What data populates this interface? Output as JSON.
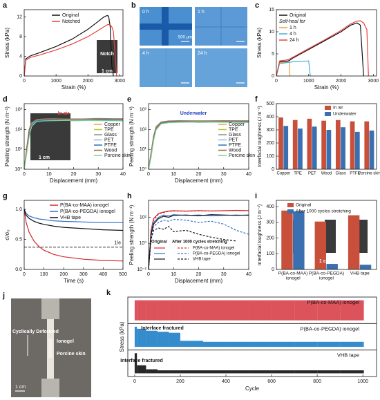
{
  "chart_data": [
    {
      "panel": "a",
      "type": "line",
      "xlabel": "Strain (%)",
      "ylabel": "Stress (kPa)",
      "xlim": [
        0,
        3100
      ],
      "ylim": [
        0,
        13.5
      ],
      "xticks": [
        0,
        1000,
        2000,
        3000
      ],
      "yticks": [
        0,
        4,
        8,
        12
      ],
      "x": [
        0,
        50,
        200,
        500,
        1000,
        1500,
        2000,
        2300,
        2500,
        2600,
        2650,
        2700,
        2750,
        2800,
        2900,
        3000
      ],
      "series": [
        {
          "name": "Original",
          "color": "#111111",
          "values": [
            0,
            3.5,
            4.1,
            4.8,
            6.0,
            7.5,
            9.5,
            11.0,
            12.0,
            12.3,
            12.2,
            10,
            2,
            0,
            null,
            null
          ]
        },
        {
          "name": "Notched",
          "color": "#e8413c",
          "values": [
            0,
            3.2,
            3.8,
            4.3,
            5.3,
            6.5,
            8.0,
            9.2,
            10.0,
            10.4,
            10.5,
            10.4,
            10.0,
            9,
            0,
            null
          ]
        }
      ],
      "annotations": [
        {
          "text": "Notch",
          "color": "#ffffff"
        },
        {
          "text": "1 cm",
          "color": "#ffffff"
        }
      ]
    },
    {
      "panel": "c",
      "type": "line",
      "xlabel": "Strain (%)",
      "ylabel": "Stress (kPa)",
      "xlim": [
        0,
        3100
      ],
      "ylim": [
        0,
        15
      ],
      "xticks": [
        0,
        1000,
        2000,
        3000
      ],
      "yticks": [
        0,
        5,
        10,
        15
      ],
      "legend_title": "Self-heal for",
      "x": [
        0,
        100,
        300,
        400,
        420,
        500,
        1000,
        1050,
        1500,
        2000,
        2300,
        2500,
        2600,
        2700,
        2800,
        2850,
        2900
      ],
      "series": [
        {
          "name": "Original",
          "color": "#111111",
          "values": [
            0,
            3.2,
            3.3,
            3.5,
            3.6,
            4.0,
            6.0,
            6.2,
            8.0,
            10.0,
            11.5,
            12.0,
            11.5,
            0,
            null,
            null,
            null
          ]
        },
        {
          "name": "1 h",
          "color": "#f0a030",
          "values": [
            0,
            3.0,
            3.1,
            3.2,
            0,
            null,
            null,
            null,
            null,
            null,
            null,
            null,
            null,
            null,
            null,
            null,
            null
          ]
        },
        {
          "name": "4 h",
          "color": "#3fb0e0",
          "values": [
            0,
            2.8,
            3.0,
            3.1,
            3.1,
            3.2,
            3.4,
            0,
            null,
            null,
            null,
            null,
            null,
            null,
            null,
            null,
            null
          ]
        },
        {
          "name": "24 h",
          "color": "#e8413c",
          "values": [
            0,
            3.4,
            3.6,
            3.8,
            3.9,
            4.2,
            6.2,
            6.4,
            8.2,
            10.3,
            11.8,
            12.4,
            12.5,
            12.0,
            10.5,
            0,
            null
          ]
        }
      ]
    },
    {
      "panel": "d",
      "type": "line",
      "yscale": "log",
      "xlabel": "Displacement (mm)",
      "ylabel": "Peeling strength (N m⁻¹)",
      "xlim": [
        0,
        40
      ],
      "ylim": [
        1,
        2000
      ],
      "xticks": [
        0,
        10,
        20,
        30,
        40
      ],
      "yticks": [
        {
          "value": 1,
          "label": "10⁰"
        },
        {
          "value": 10,
          "label": "10¹"
        },
        {
          "value": 100,
          "label": "10²"
        },
        {
          "value": 1000,
          "label": "10³"
        }
      ],
      "x": [
        0,
        1,
        2,
        3,
        5,
        8,
        12,
        20,
        30,
        40
      ],
      "series": [
        {
          "name": "Copper",
          "color": "#f2a33a",
          "values": [
            1,
            10,
            80,
            200,
            300,
            320,
            330,
            310,
            340,
            330
          ]
        },
        {
          "name": "TPE",
          "color": "#b5c93a",
          "values": [
            1,
            8,
            60,
            180,
            280,
            300,
            310,
            320,
            300,
            310
          ]
        },
        {
          "name": "Glass",
          "color": "#8c8c8c",
          "values": [
            1,
            12,
            100,
            220,
            320,
            340,
            350,
            330,
            360,
            340
          ]
        },
        {
          "name": "PET",
          "color": "#7cc3e8",
          "values": [
            1,
            9,
            70,
            190,
            290,
            310,
            290,
            300,
            320,
            300
          ]
        },
        {
          "name": "PTFE",
          "color": "#2f6fb5",
          "values": [
            1,
            7,
            50,
            160,
            270,
            290,
            300,
            280,
            290,
            300
          ]
        },
        {
          "name": "Wood",
          "color": "#9a6a3a",
          "values": [
            1,
            11,
            90,
            210,
            310,
            330,
            320,
            340,
            330,
            350
          ]
        },
        {
          "name": "Porcine skin",
          "color": "#7fcf9a",
          "values": [
            1,
            6,
            40,
            140,
            250,
            270,
            280,
            290,
            280,
            270
          ]
        }
      ],
      "annotations": [
        {
          "text": "In air",
          "color": "#e8413c"
        },
        {
          "text": "1 cm",
          "color": "#ffffff"
        }
      ]
    },
    {
      "panel": "e",
      "type": "line",
      "yscale": "log",
      "xlabel": "Displacement (mm)",
      "ylabel": "Peeling strength (N m⁻¹)",
      "xlim": [
        0,
        40
      ],
      "ylim": [
        1,
        2000
      ],
      "xticks": [
        0,
        10,
        20,
        30,
        40
      ],
      "yticks": [
        {
          "value": 1,
          "label": "10⁰"
        },
        {
          "value": 10,
          "label": "10¹"
        },
        {
          "value": 100,
          "label": "10²"
        },
        {
          "value": 1000,
          "label": "10³"
        }
      ],
      "x": [
        0,
        1,
        2,
        3,
        5,
        8,
        12,
        20,
        30,
        40
      ],
      "series": [
        {
          "name": "Copper",
          "color": "#f2a33a",
          "values": [
            1,
            6,
            40,
            120,
            220,
            250,
            260,
            250,
            270,
            260
          ]
        },
        {
          "name": "TPE",
          "color": "#b5c93a",
          "values": [
            1,
            5,
            35,
            110,
            210,
            240,
            250,
            240,
            250,
            245
          ]
        },
        {
          "name": "Glass",
          "color": "#8c8c8c",
          "values": [
            1,
            7,
            50,
            140,
            240,
            270,
            280,
            270,
            280,
            275
          ]
        },
        {
          "name": "PET",
          "color": "#7cc3e8",
          "values": [
            1,
            6,
            45,
            130,
            230,
            255,
            250,
            260,
            255,
            250
          ]
        },
        {
          "name": "PTFE",
          "color": "#2f6fb5",
          "values": [
            1,
            4,
            30,
            100,
            200,
            230,
            240,
            230,
            235,
            240
          ]
        },
        {
          "name": "Wood",
          "color": "#9a6a3a",
          "values": [
            1,
            6,
            42,
            125,
            225,
            260,
            265,
            270,
            265,
            270
          ]
        },
        {
          "name": "Porcine skin",
          "color": "#7fcf9a",
          "values": [
            1,
            4,
            28,
            95,
            190,
            220,
            230,
            235,
            230,
            225
          ]
        }
      ],
      "annotations": [
        {
          "text": "Underwater",
          "color": "#1f3fbf"
        }
      ]
    },
    {
      "panel": "f",
      "type": "bar",
      "ylabel": "Interfacial toughness (J m⁻²)",
      "ylim": [
        0,
        500
      ],
      "yticks": [
        0,
        100,
        200,
        300,
        400,
        500
      ],
      "categories": [
        [
          "Copper"
        ],
        [
          "TPE"
        ],
        [
          "PET"
        ],
        [
          "Wood"
        ],
        [
          "Glass"
        ],
        [
          "PTFE"
        ],
        [
          "Porcine skin"
        ]
      ],
      "series": [
        {
          "name": "In air",
          "color": "#c8503a",
          "values": [
            395,
            375,
            385,
            370,
            375,
            365,
            365
          ]
        },
        {
          "name": "Underwater",
          "color": "#3a6fb0",
          "values": [
            330,
            310,
            325,
            300,
            320,
            285,
            295
          ]
        }
      ]
    },
    {
      "panel": "g",
      "type": "line",
      "xlabel": "Time (s)",
      "ylabel": "σ/σ₀",
      "xlim": [
        0,
        500
      ],
      "ylim": [
        0,
        1.15
      ],
      "xticks": [
        0,
        100,
        200,
        300,
        400,
        500
      ],
      "yticks": [
        {
          "value": 0,
          "label": "0.0"
        },
        {
          "value": 0.5,
          "label": "0.5"
        },
        {
          "value": 1,
          "label": "1.0"
        }
      ],
      "reference_line": {
        "value": 0.37,
        "label": "1/e"
      },
      "x": [
        0,
        10,
        25,
        50,
        75,
        100,
        150,
        200,
        300,
        400,
        500
      ],
      "series": [
        {
          "name": "P(BA-co-MAA) ionogel",
          "color": "#d42a2a",
          "values": [
            1.0,
            0.78,
            0.62,
            0.47,
            0.38,
            0.32,
            0.25,
            0.21,
            0.17,
            0.15,
            0.14
          ]
        },
        {
          "name": "P(BA-co-PEGDA) ionogel",
          "color": "#2f6fd0",
          "values": [
            1.0,
            0.93,
            0.89,
            0.86,
            0.84,
            0.83,
            0.81,
            0.8,
            0.79,
            0.78,
            0.78
          ]
        },
        {
          "name": "VHB tape",
          "color": "#111111",
          "values": [
            1.0,
            0.9,
            0.85,
            0.8,
            0.77,
            0.75,
            0.72,
            0.7,
            0.68,
            0.66,
            0.65
          ]
        }
      ]
    },
    {
      "panel": "h",
      "type": "line",
      "yscale": "log",
      "xlabel": "Displacement (mm)",
      "ylabel": "Peeling strength (N m⁻¹)",
      "xlim": [
        0,
        40
      ],
      "ylim": [
        0.01,
        2000
      ],
      "xticks": [
        0,
        10,
        20,
        30,
        40
      ],
      "yticks": [
        {
          "value": 0.01,
          "label": "10⁻²"
        },
        {
          "value": 1,
          "label": "10⁰"
        },
        {
          "value": 100,
          "label": "10²"
        }
      ],
      "legend_title": [
        "Original",
        "After 1000 cycles stretching"
      ],
      "x": [
        0,
        1,
        2,
        4,
        6,
        8,
        10,
        15,
        20,
        25,
        30,
        35,
        40
      ],
      "series": [
        {
          "name": "P(BA-co-MAA) ionogel",
          "color": "#d42a2a",
          "values": [
            0.01,
            10,
            80,
            200,
            250,
            300,
            320,
            300,
            330,
            310,
            320,
            340,
            330
          ],
          "values_after": [
            0.01,
            8,
            60,
            180,
            230,
            280,
            300,
            290,
            310,
            300,
            320,
            330,
            320
          ]
        },
        {
          "name": "P(BA-co-PEGDA) ionogel",
          "color": "#2f6fd0",
          "values": [
            0.01,
            5,
            40,
            100,
            150,
            130,
            160,
            140,
            150,
            130,
            140,
            150,
            140
          ],
          "values_after": [
            0.01,
            3,
            20,
            40,
            60,
            50,
            70,
            60,
            40,
            50,
            30,
            10,
            5
          ]
        },
        {
          "name": "VHB tape",
          "color": "#111111",
          "values": [
            0.01,
            5,
            30,
            80,
            120,
            100,
            140,
            150,
            130,
            160,
            150,
            140,
            150
          ],
          "values_after": [
            0.01,
            2,
            10,
            15,
            12,
            20,
            8,
            10,
            5,
            3,
            2,
            1.5,
            null
          ]
        }
      ]
    },
    {
      "panel": "i",
      "type": "bar",
      "ylabel": "Interfacial toughness (J m⁻²)",
      "ylim": [
        0,
        440
      ],
      "yticks": [
        0,
        100,
        200,
        300,
        400
      ],
      "categories": [
        [
          "P(BA-co-MAA)",
          "ionogel"
        ],
        [
          "P(BA-co-PEGDA)",
          "ionogel"
        ],
        [
          "VHB tape"
        ]
      ],
      "series": [
        {
          "name": "Original",
          "color": "#c8503a",
          "values": [
            375,
            305,
            345
          ]
        },
        {
          "name": "After 1000 cycles stretching",
          "color": "#3a6fb0",
          "values": [
            370,
            35,
            30
          ]
        }
      ],
      "annotations": [
        {
          "text": "1 cm",
          "color": "#ffffff"
        }
      ]
    },
    {
      "panel": "k",
      "type": "band",
      "xlabel": "Cycle",
      "ylabel": "Stress (kPa)",
      "xlim": [
        -30,
        1060
      ],
      "xticks": [
        0,
        200,
        400,
        600,
        800,
        1000
      ],
      "x": [
        0,
        10,
        50,
        100,
        150,
        200,
        300,
        400,
        500,
        600,
        700,
        800,
        900,
        1000
      ],
      "series": [
        {
          "name": "P(BA-co-MAA) ionogel",
          "color": "#d8404a",
          "values": [
            1,
            1,
            1,
            1,
            1,
            1,
            1,
            1,
            1,
            1,
            1,
            1,
            1,
            1
          ]
        },
        {
          "name": "P(BA-co-PEGDA) ionogel",
          "color": "#1f7fc8",
          "values": [
            1,
            0.9,
            0.8,
            0.75,
            0.7,
            0.3,
            0.25,
            0.25,
            0.25,
            0.25,
            0.25,
            0.25,
            0.25,
            0.25
          ]
        },
        {
          "name": "VHB tape",
          "color": "#111111",
          "values": [
            1,
            0.4,
            0.2,
            0.15,
            0.15,
            0.15,
            0.15,
            0.15,
            0.15,
            0.15,
            0.15,
            0.15,
            0.15,
            0.15
          ]
        }
      ],
      "annotations": [
        {
          "text": "Interface fractured",
          "color": "#111111"
        },
        {
          "text": "Interface fractured",
          "color": "#111111"
        }
      ]
    }
  ],
  "images": [
    {
      "panel": "b",
      "labels": [
        "0 h",
        "1 h",
        "4 h",
        "24 h"
      ],
      "scale_bar": "500 μm"
    },
    {
      "panel": "j",
      "labels": [
        "Cyclically Deformed",
        "Ionogel",
        "Porcine skin"
      ],
      "scale_bar": "1 cm"
    }
  ]
}
